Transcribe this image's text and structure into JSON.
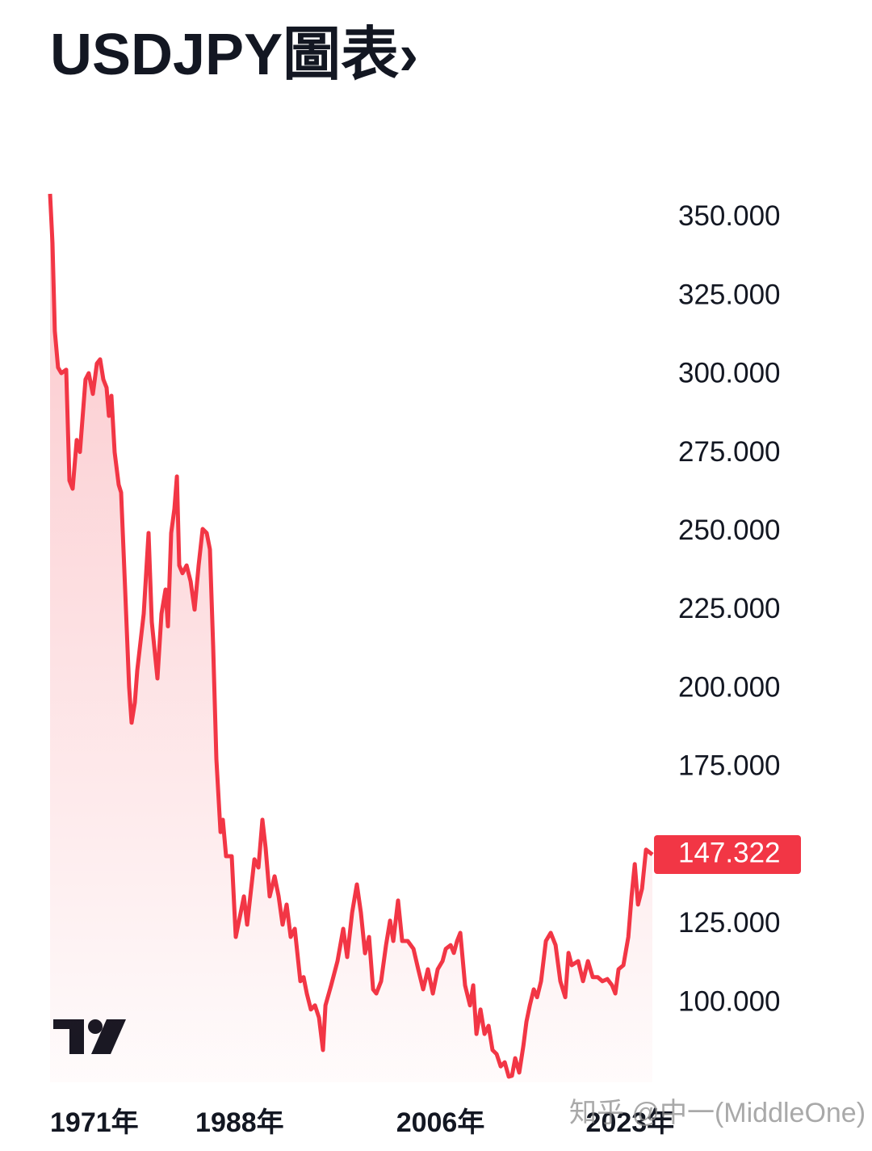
{
  "chart_data": {
    "type": "area",
    "title": "USDJPY圖表›",
    "watermark": "知乎 @中一(MiddleOne)",
    "color": "#f23645",
    "x": [
      1971.0,
      1971.22,
      1971.43,
      1971.72,
      1972.01,
      1972.45,
      1972.74,
      1973.03,
      1973.39,
      1973.68,
      1974.18,
      1974.47,
      1974.84,
      1975.2,
      1975.49,
      1975.78,
      1976.07,
      1976.28,
      1976.5,
      1976.79,
      1977.15,
      1977.37,
      1977.73,
      1978.09,
      1978.31,
      1978.6,
      1978.82,
      1979.4,
      1979.83,
      1980.12,
      1980.63,
      1980.99,
      1981.35,
      1981.57,
      1981.86,
      1982.15,
      1982.37,
      1982.58,
      1982.87,
      1983.24,
      1983.6,
      1983.96,
      1984.32,
      1984.68,
      1985.04,
      1985.33,
      1985.62,
      1985.91,
      1986.28,
      1986.49,
      1986.78,
      1987.29,
      1987.65,
      1988.09,
      1988.38,
      1988.67,
      1989.32,
      1989.68,
      1990.04,
      1990.33,
      1990.69,
      1991.13,
      1991.49,
      1991.85,
      1992.21,
      1992.57,
      1992.94,
      1993.44,
      1993.73,
      1994.02,
      1994.38,
      1994.75,
      1995.11,
      1995.47,
      1995.69,
      1996.2,
      1996.77,
      1997.28,
      1997.64,
      1998.08,
      1998.51,
      1998.87,
      1999.24,
      1999.6,
      1999.96,
      2000.25,
      2000.68,
      2001.12,
      2001.48,
      2001.77,
      2002.2,
      2002.57,
      2003.07,
      2003.58,
      2004.01,
      2004.45,
      2004.88,
      2005.32,
      2005.75,
      2006.19,
      2006.48,
      2006.91,
      2007.2,
      2007.49,
      2007.78,
      2008.21,
      2008.65,
      2008.94,
      2009.23,
      2009.59,
      2009.95,
      2010.31,
      2010.67,
      2011.04,
      2011.4,
      2011.76,
      2012.12,
      2012.41,
      2012.7,
      2013.06,
      2013.43,
      2013.71,
      2014.01,
      2014.37,
      2014.66,
      2015.02,
      2015.45,
      2015.89,
      2016.32,
      2016.75,
      2017.19,
      2017.48,
      2017.77,
      2018.35,
      2018.78,
      2019.22,
      2019.65,
      2020.09,
      2020.52,
      2020.96,
      2021.39,
      2021.68,
      2021.97,
      2022.4,
      2022.84,
      2023.13,
      2023.42,
      2023.71,
      2024.07,
      2024.43,
      2025.0
    ],
    "values": [
      357.7,
      342.0,
      314.0,
      302.4,
      300.6,
      301.7,
      266.4,
      263.8,
      279.3,
      275.5,
      298.6,
      300.6,
      294.0,
      303.7,
      305.0,
      298.6,
      296.0,
      287.0,
      293.4,
      275.4,
      265.1,
      262.6,
      231.7,
      200.8,
      189.3,
      195.7,
      206.0,
      224.0,
      249.7,
      221.4,
      203.4,
      224.0,
      231.7,
      220.0,
      249.7,
      257.4,
      267.7,
      239.4,
      236.9,
      239.4,
      234.3,
      225.3,
      239.4,
      251.0,
      249.7,
      244.5,
      213.7,
      177.7,
      154.5,
      158.4,
      146.8,
      146.8,
      121.1,
      128.8,
      134.0,
      125.0,
      145.8,
      143.2,
      158.4,
      149.4,
      134.0,
      140.4,
      134.0,
      125.0,
      131.4,
      121.1,
      123.7,
      107.0,
      108.3,
      103.1,
      98.0,
      99.3,
      95.4,
      85.1,
      99.3,
      105.7,
      113.4,
      123.7,
      114.7,
      128.8,
      137.8,
      128.8,
      115.9,
      121.1,
      104.4,
      103.1,
      107.0,
      118.5,
      126.3,
      119.8,
      132.7,
      119.8,
      119.8,
      117.3,
      110.8,
      104.4,
      110.8,
      103.1,
      110.8,
      113.4,
      117.3,
      118.5,
      116.0,
      119.8,
      122.4,
      105.7,
      99.3,
      105.7,
      90.2,
      98.0,
      90.2,
      92.8,
      85.1,
      83.8,
      79.9,
      81.2,
      76.6,
      76.9,
      82.5,
      77.9,
      86.4,
      94.1,
      99.3,
      104.4,
      101.9,
      107.0,
      119.8,
      122.4,
      118.5,
      107.0,
      101.9,
      116.0,
      112.1,
      113.4,
      107.0,
      113.4,
      108.3,
      108.3,
      107.0,
      107.7,
      105.7,
      103.1,
      110.8,
      112.1,
      121.1,
      134.0,
      144.3,
      131.4,
      136.5,
      148.9,
      147.322
    ],
    "xlim": [
      1971,
      2025
    ],
    "ylim": [
      74.8,
      357.7
    ],
    "xticks": [
      {
        "value": 1971,
        "label": "1971年"
      },
      {
        "value": 1988,
        "label": "1988年"
      },
      {
        "value": 2006,
        "label": "2006年"
      },
      {
        "value": 2023,
        "label": "2023年"
      }
    ],
    "yticks": [
      {
        "value": 100,
        "label": "100.000"
      },
      {
        "value": 125,
        "label": "125.000"
      },
      {
        "value": 175,
        "label": "175.000"
      },
      {
        "value": 200,
        "label": "200.000"
      },
      {
        "value": 225,
        "label": "225.000"
      },
      {
        "value": 250,
        "label": "250.000"
      },
      {
        "value": 275,
        "label": "275.000"
      },
      {
        "value": 300,
        "label": "300.000"
      },
      {
        "value": 325,
        "label": "325.000"
      },
      {
        "value": 350,
        "label": "350.000"
      }
    ]
  }
}
